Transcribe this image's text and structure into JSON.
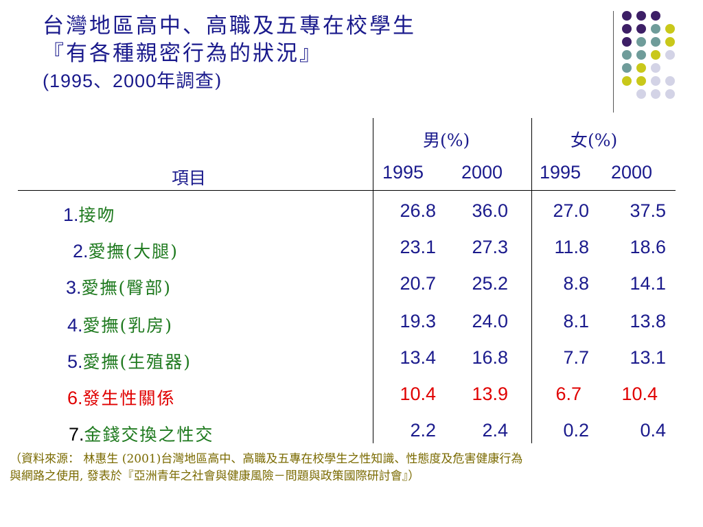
{
  "title": {
    "line1": "台灣地區高中、高職及五專在校學生",
    "line2": "『有各種親密行為的狀況』",
    "line3_prefix": "(1995、2000",
    "line3_suffix": "年調查)"
  },
  "table": {
    "item_header": "項目",
    "male_header": "男(%)",
    "female_header": "女(%)",
    "years": [
      "1995",
      "2000",
      "1995",
      "2000"
    ],
    "rows": [
      {
        "num": "1.",
        "label": "接吻",
        "values": [
          "26.8",
          "36.0",
          "27.0",
          "37.5"
        ]
      },
      {
        "num": "2.",
        "label": "愛撫(大腿)",
        "values": [
          "23.1",
          "27.3",
          "11.8",
          "18.6"
        ]
      },
      {
        "num": "3.",
        "label": "愛撫(臀部)",
        "values": [
          "20.7",
          "25.2",
          "8.8",
          "14.1"
        ]
      },
      {
        "num": "4.",
        "label": "愛撫(乳房)",
        "values": [
          "19.3",
          "24.0",
          "8.1",
          "13.8"
        ]
      },
      {
        "num": "5.",
        "label": "愛撫(生殖器)",
        "values": [
          "13.4",
          "16.8",
          "7.7",
          "13.1"
        ]
      },
      {
        "num": "6.",
        "label": "發生性關係",
        "values": [
          "10.4",
          "13.9",
          "6.7",
          "10.4"
        ]
      },
      {
        "num": "7.",
        "label": "金錢交換之性交",
        "values": [
          "2.2",
          "2.4",
          "0.2",
          "0.4"
        ]
      }
    ]
  },
  "source": {
    "line1": "（資料來源： 林惠生 (2001)台灣地區高中、高職及五專在校學生之性知識、性態度及危害健康行為",
    "line2": "與網路之使用, 發表於『亞洲青年之社會與健康風險－問題與政策國際研討會』）"
  },
  "colors": {
    "title": "#1a1a8c",
    "label_green": "#1f7a1f",
    "highlight_red": "#e00000",
    "source": "#7a6a00",
    "dot_purple": "#3d1f66",
    "dot_teal": "#6f9c9a",
    "dot_yellow": "#c9c81a",
    "dot_lavender": "#d3d3e6"
  }
}
